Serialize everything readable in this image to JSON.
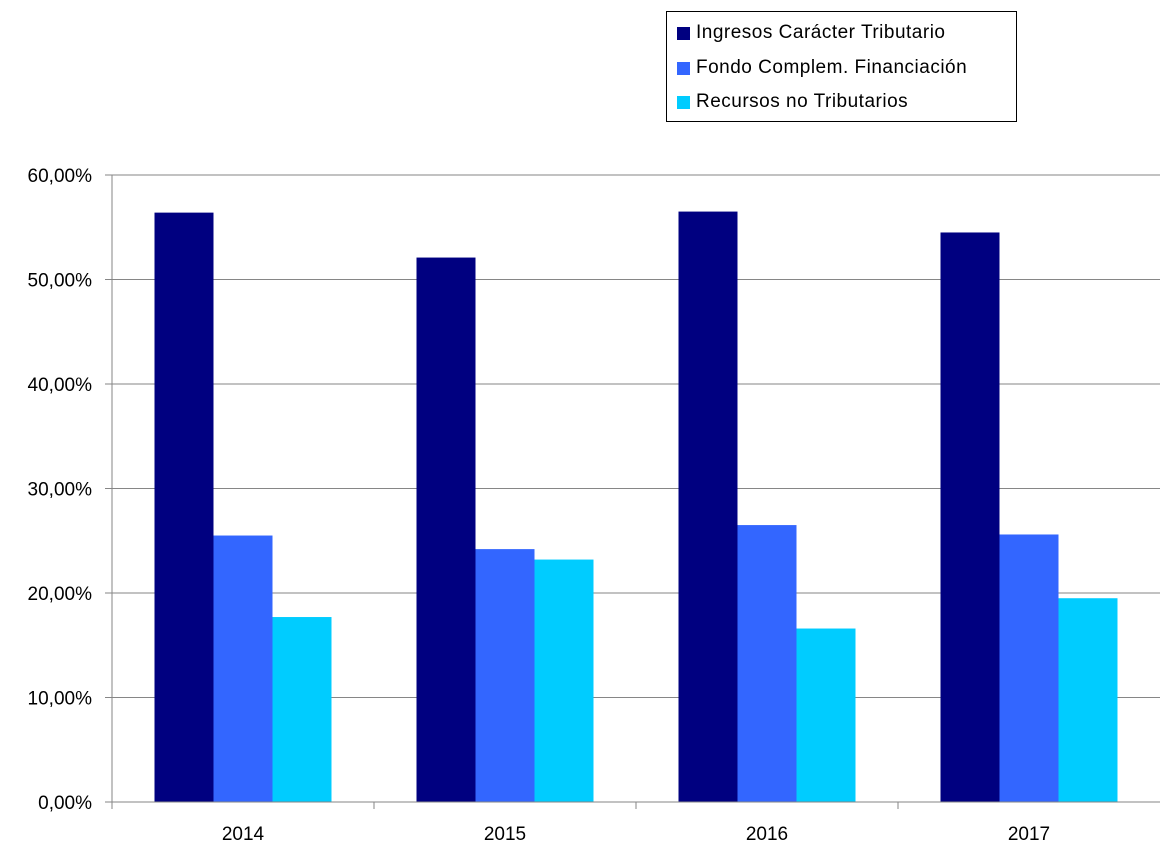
{
  "chart_data": {
    "type": "bar",
    "categories": [
      "2014",
      "2015",
      "2016",
      "2017"
    ],
    "series": [
      {
        "name": "Ingresos Carácter Tributario",
        "color": "#000080",
        "values": [
          56.4,
          52.1,
          56.5,
          54.5
        ]
      },
      {
        "name": "Fondo Complem. Financiación",
        "color": "#3366FF",
        "values": [
          25.5,
          24.2,
          26.5,
          25.6
        ]
      },
      {
        "name": "Recursos no Tributarios",
        "color": "#00CCFF",
        "values": [
          17.7,
          23.2,
          16.6,
          19.5
        ]
      }
    ],
    "yticks": [
      "0,00%",
      "10,00%",
      "20,00%",
      "30,00%",
      "40,00%",
      "50,00%",
      "60,00%"
    ],
    "ylim": [
      0,
      60
    ],
    "grid": true,
    "legend_position": "top-right"
  }
}
